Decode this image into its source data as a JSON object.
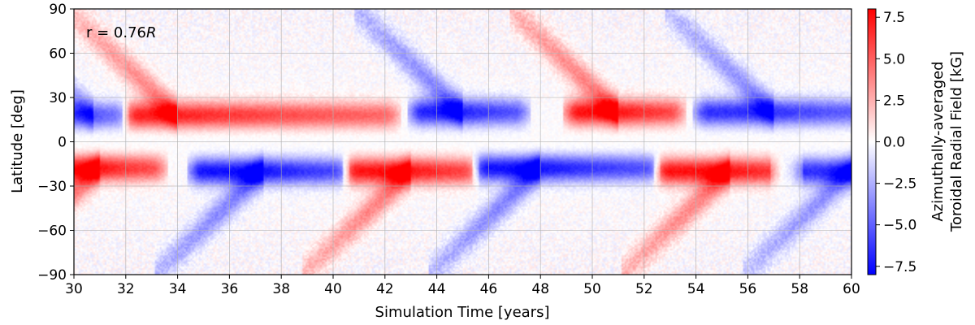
{
  "chart_data": {
    "type": "heatmap",
    "title": "",
    "annotation": {
      "prefix": "r = 0.76",
      "var": "R"
    },
    "xlabel": "Simulation Time [years]",
    "ylabel": "Latitude [deg]",
    "xlim": [
      30,
      60
    ],
    "ylim": [
      -90,
      90
    ],
    "xticks": [
      30,
      32,
      34,
      36,
      38,
      40,
      42,
      44,
      46,
      48,
      50,
      52,
      54,
      56,
      58,
      60
    ],
    "xtick_labels": [
      "30",
      "32",
      "34",
      "36",
      "38",
      "40",
      "42",
      "44",
      "46",
      "48",
      "50",
      "52",
      "54",
      "56",
      "58",
      "60"
    ],
    "yticks": [
      90,
      60,
      30,
      0,
      -30,
      -60,
      -90
    ],
    "ytick_labels": [
      "90",
      "60",
      "30",
      "0",
      "−30",
      "−60",
      "−90"
    ],
    "grid": true,
    "colorbar": {
      "label_line1": "Azimuthally-averaged",
      "label_line2": "Toroidal Radial Field [kG]",
      "range": [
        -8,
        8
      ],
      "ticks": [
        7.5,
        5.0,
        2.5,
        0.0,
        -2.5,
        -5.0,
        -7.5
      ],
      "tick_labels": [
        "7.5",
        "5.0",
        "2.5",
        "0.0",
        "−2.5",
        "−5.0",
        "−7.5"
      ],
      "colormap": "bwr",
      "low_color": "#0000ff",
      "mid_color": "#ffffff",
      "high_color": "#ff0000"
    },
    "features": [
      {
        "hemisphere": "north",
        "sign": "negative",
        "t_start": 30.0,
        "t_end": 31.5,
        "peak_lat": 18,
        "peak_kG": -5.5
      },
      {
        "hemisphere": "north",
        "sign": "positive",
        "t_start": 32.5,
        "t_end": 42.0,
        "peak_time": 34.0,
        "peak_lat": 18,
        "peak_kG": 7.0
      },
      {
        "hemisphere": "north",
        "sign": "negative",
        "t_start": 43.5,
        "t_end": 47.0,
        "peak_time": 45.0,
        "peak_lat": 20,
        "peak_kG": -7.0
      },
      {
        "hemisphere": "north",
        "sign": "positive",
        "t_start": 49.5,
        "t_end": 53.0,
        "peak_time": 51.0,
        "peak_lat": 20,
        "peak_kG": 7.5
      },
      {
        "hemisphere": "north",
        "sign": "negative",
        "t_start": 54.5,
        "t_end": 60.0,
        "peak_time": 57.0,
        "peak_lat": 20,
        "peak_kG": -6.5
      },
      {
        "hemisphere": "south",
        "sign": "positive",
        "t_start": 30.0,
        "t_end": 33.0,
        "peak_time": 31.0,
        "peak_lat": -18,
        "peak_kG": 7.5
      },
      {
        "hemisphere": "south",
        "sign": "negative",
        "t_start": 35.0,
        "t_end": 40.0,
        "peak_time": 37.3,
        "peak_lat": -20,
        "peak_kG": -7.5
      },
      {
        "hemisphere": "south",
        "sign": "positive",
        "t_start": 41.0,
        "t_end": 45.0,
        "peak_time": 43.0,
        "peak_lat": -20,
        "peak_kG": 7.5
      },
      {
        "hemisphere": "south",
        "sign": "negative",
        "t_start": 46.0,
        "t_end": 52.0,
        "peak_time": 48.0,
        "peak_lat": -18,
        "peak_kG": -7.5
      },
      {
        "hemisphere": "south",
        "sign": "positive",
        "t_start": 53.0,
        "t_end": 57.5,
        "peak_time": 55.3,
        "peak_lat": -20,
        "peak_kG": 7.5
      },
      {
        "hemisphere": "south",
        "sign": "negative",
        "t_start": 57.5,
        "t_end": 60.0,
        "peak_time": 60.0,
        "peak_lat": -20,
        "peak_kG": -6.5
      }
    ]
  }
}
